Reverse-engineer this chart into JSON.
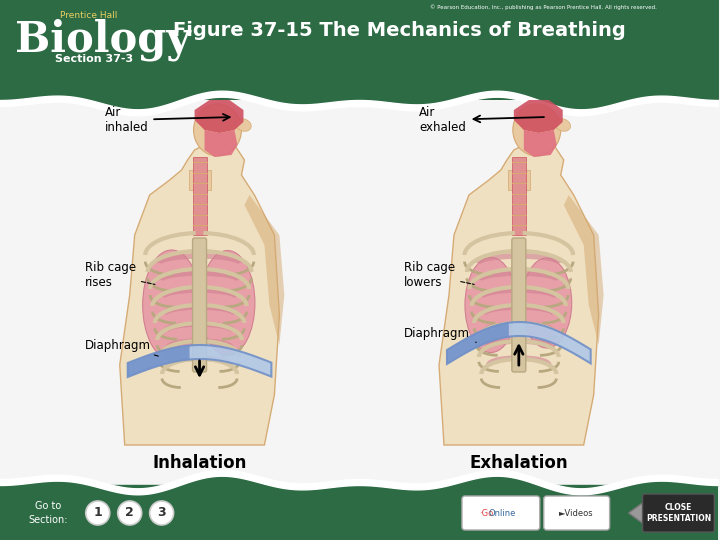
{
  "title": "Figure 37-15 The Mechanics of Breathing",
  "subtitle": "Section 37-3",
  "biology_text": "Biology",
  "prentice_hall": "Prentice Hall",
  "copyright": "© Pearson Education, Inc., publishing as Pearson Prentice Hall. All rights reserved.",
  "header_bg": "#2d6b45",
  "footer_bg": "#2d6b45",
  "main_bg": "#f5f5f5",
  "title_color": "#ffffff",
  "label_left": [
    "Air\ninhaled",
    "Rib cage\nrises",
    "Diaphragm"
  ],
  "label_right": [
    "Air\nexhaled",
    "Rib cage\nlowers",
    "Diaphragm"
  ],
  "caption_left": "Inhalation",
  "caption_right": "Exhalation",
  "go_to_section": "Go to\nSection:",
  "close_presentation": "CLOSE\nPRESENTATION",
  "body_skin": "#e8c9a0",
  "body_skin_dark": "#d4a870",
  "body_skin_light": "#f0dfc0",
  "rib_bone": "#d4c4a0",
  "rib_bone_dark": "#b8a880",
  "lung_pink": "#e8a0a8",
  "lung_pink2": "#d08090",
  "lung_stripe": "#c09090",
  "diaphragm_blue": "#7090c8",
  "diaphragm_blue2": "#90b0e0",
  "diaphragm_light": "#b0c8e8",
  "nasal_red": "#d05060",
  "nasal_red2": "#e07080",
  "trachea_pink": "#e09090"
}
